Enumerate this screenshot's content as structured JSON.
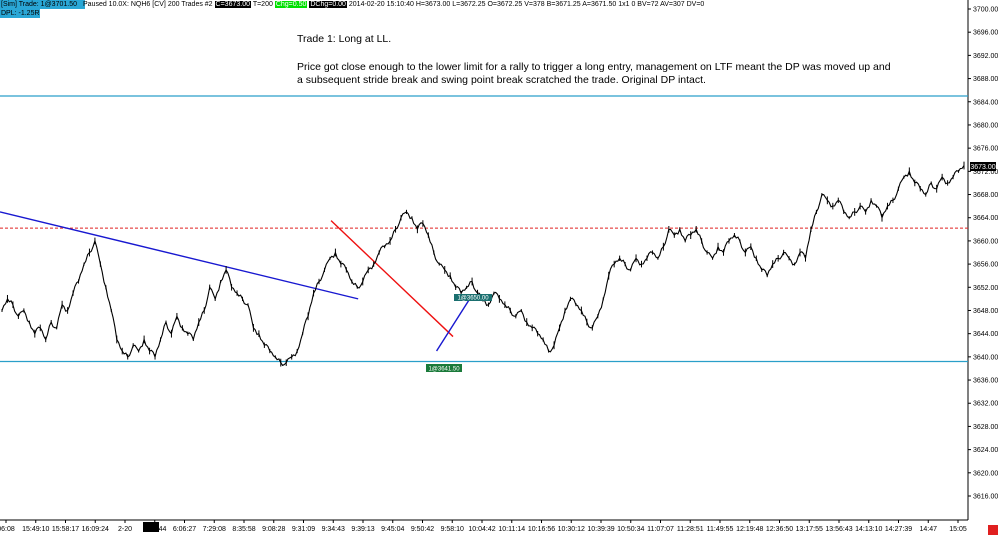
{
  "header": {
    "sim_label": "[Sim]  Trade: 1@3701.50",
    "status_text": "Paused 10.0X: NQH6 [CV]  200 Trades  #2",
    "c_label": "C=3673.00",
    "t_label": "T=200",
    "chg_label": "Chg=0.50",
    "dchg_label": "DChg=0.00",
    "stats_text": "2014-02-20  15:10:40  H=3673.00  L=3672.25  O=3672.25  V=378  B=3671.25  A=3671.50  1x1 0  BV=72  AV=307  DV=0",
    "dpl_label": "DPL: -1.25R"
  },
  "annotation": {
    "title": "Trade 1:  Long at LL.",
    "line1": "Price got close enough to the lower limit for a rally to trigger a long entry, management on LTF meant the DP was moved up and",
    "line2": "a subsequent stride break and swing point break scratched the trade. Original DP intact."
  },
  "trade_markers": {
    "entry_label": "1@3641.50",
    "exit_label": "1@3650.00"
  },
  "colors": {
    "price": "#000000",
    "limit_line": "#2a9fc9",
    "dp_line": "#e02020",
    "trend_line": "#1818d0",
    "red_trend": "#ee1010",
    "marker_bg": "#1a7a3a",
    "marker_bg2": "#1a6f6f",
    "last_box_bg": "#000000"
  },
  "chart_data": {
    "type": "line",
    "title": "",
    "xlabel": "",
    "ylabel": "",
    "ylim": [
      3612,
      3702
    ],
    "yticks": [
      3616.0,
      3620.0,
      3624.0,
      3628.0,
      3632.0,
      3636.0,
      3640.0,
      3644.0,
      3648.0,
      3652.0,
      3656.0,
      3660.0,
      3664.0,
      3668.0,
      3672.0,
      3676.0,
      3680.0,
      3684.0,
      3688.0,
      3692.0,
      3696.0,
      3700.0
    ],
    "xticks": [
      "06:08",
      "15:49:10",
      "15:58:17",
      "16:09:24",
      "2-20",
      "3:27:44",
      "6:06:27",
      "7:29:08",
      "8:35:58",
      "9:08:28",
      "9:31:09",
      "9:34:43",
      "9:39:13",
      "9:45:04",
      "9:50:42",
      "9:58:10",
      "10:04:42",
      "10:11:14",
      "10:16:56",
      "10:30:12",
      "10:39:39",
      "10:50:34",
      "11:07:07",
      "11:28:51",
      "11:49:55",
      "12:19:48",
      "12:36:50",
      "13:17:55",
      "13:56:43",
      "14:13:10",
      "14:27:39",
      "14:47",
      "15:05"
    ],
    "last_price": "3673.00",
    "series": [
      {
        "values": [
          3648,
          3650,
          3649,
          3647,
          3648,
          3646,
          3644,
          3645,
          3643,
          3646,
          3645,
          3649,
          3648,
          3651,
          3653,
          3656,
          3658,
          3660,
          3656,
          3652,
          3648,
          3643,
          3641,
          3640,
          3642,
          3641,
          3643,
          3641,
          3640,
          3643,
          3646,
          3644,
          3647,
          3645,
          3644,
          3643,
          3646,
          3648,
          3652,
          3650,
          3653,
          3655,
          3652,
          3651,
          3650,
          3649,
          3645,
          3644,
          3642,
          3641,
          3640,
          3639,
          3639,
          3640,
          3641,
          3644,
          3647,
          3651,
          3653,
          3655,
          3657,
          3658,
          3656,
          3655,
          3653,
          3652,
          3653,
          3655,
          3656,
          3658,
          3659,
          3660,
          3662,
          3664,
          3665,
          3664,
          3662,
          3663,
          3661,
          3658,
          3656,
          3655,
          3654,
          3652,
          3651,
          3652,
          3653,
          3651,
          3650,
          3649,
          3651,
          3650,
          3649,
          3648,
          3647,
          3648,
          3646,
          3645,
          3644,
          3643,
          3641,
          3642,
          3645,
          3648,
          3650,
          3649,
          3648,
          3646,
          3645,
          3647,
          3650,
          3654,
          3656,
          3657,
          3656,
          3655,
          3657,
          3656,
          3657,
          3658,
          3657,
          3659,
          3662,
          3661,
          3662,
          3660,
          3661,
          3662,
          3660,
          3658,
          3657,
          3659,
          3658,
          3660,
          3661,
          3660,
          3658,
          3659,
          3657,
          3655,
          3654,
          3656,
          3657,
          3658,
          3657,
          3656,
          3658,
          3657,
          3662,
          3665,
          3668,
          3667,
          3666,
          3667,
          3665,
          3664,
          3665,
          3666,
          3665,
          3667,
          3666,
          3664,
          3666,
          3667,
          3669,
          3671,
          3672,
          3670,
          3669,
          3668,
          3670,
          3669,
          3671,
          3670,
          3671,
          3672,
          3673
        ]
      }
    ],
    "levels": [
      {
        "name": "upper limit",
        "y": 3685.0,
        "style": "solid"
      },
      {
        "name": "DP",
        "y": 3662.2,
        "style": "dashed"
      },
      {
        "name": "lower limit",
        "y": 3639.2,
        "style": "solid"
      }
    ],
    "trendlines": [
      {
        "name": "blue downtrend",
        "x1": 0,
        "y1": 3665.0,
        "x2": 0.37,
        "y2": 3650.0
      },
      {
        "name": "red downtrend",
        "x1": 0.342,
        "y1": 3663.5,
        "x2": 0.468,
        "y2": 3643.5
      },
      {
        "name": "blue entry uptrend",
        "x1": 0.451,
        "y1": 3641.0,
        "x2": 0.486,
        "y2": 3650.2
      }
    ]
  }
}
